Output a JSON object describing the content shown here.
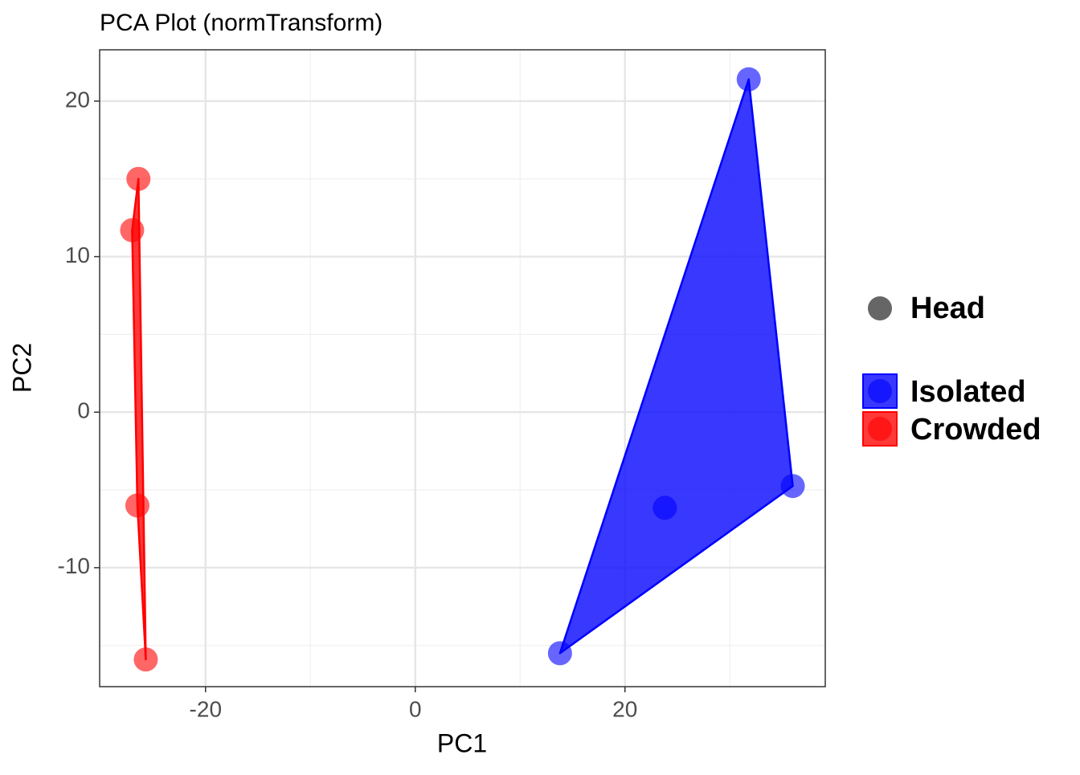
{
  "chart_data": {
    "type": "scatter",
    "title": "PCA Plot (normTransform)",
    "x_label": "PC1",
    "y_label": "PC2",
    "shape_legend": "Head",
    "series": [
      {
        "name": "Isolated",
        "color": "#0000ff",
        "x": [
          31.8,
          36.0,
          23.8,
          13.8
        ],
        "y": [
          21.4,
          -4.75,
          -6.15,
          -15.5
        ]
      },
      {
        "name": "Crowded",
        "color": "#ff0000",
        "x": [
          -26.4,
          -27.0,
          -26.5,
          -25.7
        ],
        "y": [
          15.0,
          11.7,
          -6.0,
          -15.9
        ]
      }
    ],
    "xlim": [
      -30.1,
      39.1
    ],
    "ylim": [
      -17.65,
      23.3
    ],
    "xticks": [
      -20,
      0,
      20
    ],
    "yticks": [
      -10,
      0,
      10,
      20
    ],
    "xminorticks": [
      -10,
      10,
      30
    ],
    "yminorticks": [
      -15,
      -5,
      5,
      15
    ],
    "grid": true,
    "hull": true
  }
}
